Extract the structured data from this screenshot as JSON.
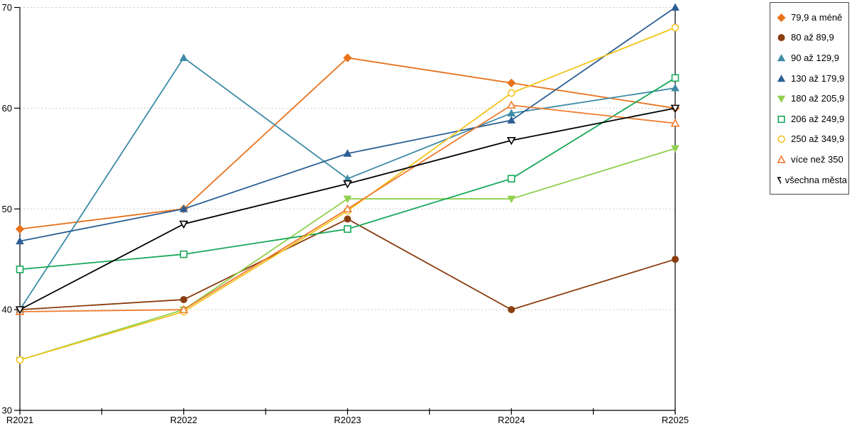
{
  "chart_data": {
    "type": "line",
    "title": "",
    "xlabel": "",
    "ylabel": "",
    "categories": [
      "R2021",
      "R2022",
      "R2023",
      "R2024",
      "R2025"
    ],
    "series": [
      {
        "name": "79,9 a méně",
        "color": "#e8721c",
        "marker": "diamond",
        "open": false,
        "values": [
          48,
          50,
          65,
          62.5,
          60
        ]
      },
      {
        "name": "80 až 89,9",
        "color": "#8a3e10",
        "marker": "circle",
        "open": false,
        "values": [
          40,
          41,
          49,
          40,
          45
        ]
      },
      {
        "name": "90 až 129,9",
        "color": "#3e8ba5",
        "marker": "triangle-up",
        "open": false,
        "values": [
          40,
          65,
          53,
          59.5,
          62
        ]
      },
      {
        "name": "130 až 179,9",
        "color": "#2c5f94",
        "marker": "triangle-up",
        "open": false,
        "values": [
          46.8,
          50,
          55.5,
          58.8,
          70
        ]
      },
      {
        "name": "180 až 205,9",
        "color": "#90d04e",
        "marker": "triangle-down",
        "open": false,
        "values": [
          35,
          40,
          51,
          51,
          56
        ]
      },
      {
        "name": "206 až 249,9",
        "color": "#18a85a",
        "marker": "square",
        "open": true,
        "values": [
          44,
          45.5,
          48,
          53,
          63
        ]
      },
      {
        "name": "250 až 349,9",
        "color": "#f2c31c",
        "marker": "circle",
        "open": true,
        "values": [
          35,
          39.8,
          49.8,
          61.5,
          68
        ]
      },
      {
        "name": "více než 350",
        "color": "#ef7a2e",
        "marker": "triangle-up",
        "open": true,
        "values": [
          39.8,
          40,
          50,
          60.3,
          58.5
        ]
      },
      {
        "name": "všechna města",
        "color": "#000000",
        "marker": "triangle-down",
        "open": true,
        "values": [
          40,
          48.5,
          52.5,
          56.8,
          60
        ]
      }
    ],
    "ylim": [
      30,
      70
    ],
    "y_tick_labels": [
      "30",
      "40",
      "50",
      "60",
      "70"
    ],
    "y_tick_values": [
      30,
      40,
      50,
      60,
      70
    ],
    "grid": "horizontal-dashed",
    "gridline_color": "#c9c9c9",
    "axis_color": "#000000",
    "legend_position": "right-top"
  }
}
